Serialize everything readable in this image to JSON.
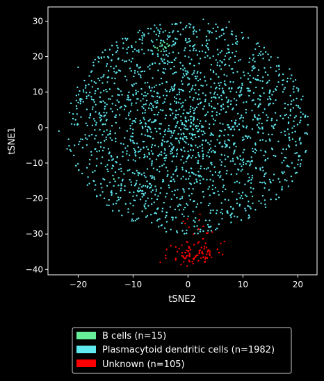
{
  "chart_data": {
    "type": "scatter",
    "title": "",
    "xlabel": "tSNE2",
    "ylabel": "tSNE1",
    "xlim": [
      -25.5,
      23.5
    ],
    "ylim": [
      -41.5,
      34
    ],
    "xticks": [
      -20,
      -10,
      0,
      10,
      20
    ],
    "yticks": [
      -40,
      -30,
      -20,
      -10,
      0,
      10,
      20,
      30
    ],
    "tick_labels": {
      "x": [
        "−20",
        "−10",
        "0",
        "10",
        "20"
      ],
      "y": [
        "−40",
        "−30",
        "−20",
        "−10",
        "0",
        "10",
        "20",
        "30"
      ]
    },
    "grid": false,
    "legend_position": "bottom-center",
    "background": "#000000",
    "axis_color": "#ffffff",
    "series": [
      {
        "name": "Plasmacytoid dendritic cells (n=1982)",
        "color": "#5ee8ef",
        "count": 1982,
        "distribution": "disc",
        "center": [
          0,
          0
        ],
        "radius_x": 22,
        "radius_y": 30,
        "highlights": [
          {
            "x": -23.5,
            "y": -1
          },
          {
            "x": 21.5,
            "y": -6.5
          },
          {
            "x": 20.5,
            "y": 2
          },
          {
            "x": 7.5,
            "y": 29.8
          },
          {
            "x": 2.8,
            "y": 30.5
          },
          {
            "x": -7.2,
            "y": 26.5
          },
          {
            "x": -20,
            "y": 17
          },
          {
            "x": -22,
            "y": -6
          },
          {
            "x": 18.5,
            "y": 16.5
          }
        ]
      },
      {
        "name": "B cells (n=15)",
        "color": "#66ee99",
        "count": 15,
        "points": [
          [
            -5.6,
            22.4
          ],
          [
            -5.1,
            22.9
          ],
          [
            -4.7,
            23.3
          ],
          [
            -4.2,
            22.8
          ],
          [
            -4.5,
            22.1
          ],
          [
            -3.8,
            23.6
          ],
          [
            -5.4,
            21.8
          ],
          [
            -4.0,
            22.4
          ],
          [
            -3.6,
            22.9
          ],
          [
            -5.0,
            23.8
          ],
          [
            -4.9,
            21.5
          ],
          [
            -3.4,
            23.2
          ],
          [
            -6.0,
            22.6
          ],
          [
            -4.3,
            24.0
          ],
          [
            -13.5,
            -14.5
          ]
        ]
      },
      {
        "name": "Unknown (n=105)",
        "color": "#ff0000",
        "count": 105,
        "distribution": "cluster",
        "center": [
          1.2,
          -35.5
        ],
        "spread": [
          2.3,
          1.6
        ],
        "tail": {
          "x_range": [
            -1,
            4.5
          ],
          "y_range": [
            -32,
            -22
          ]
        }
      }
    ]
  }
}
